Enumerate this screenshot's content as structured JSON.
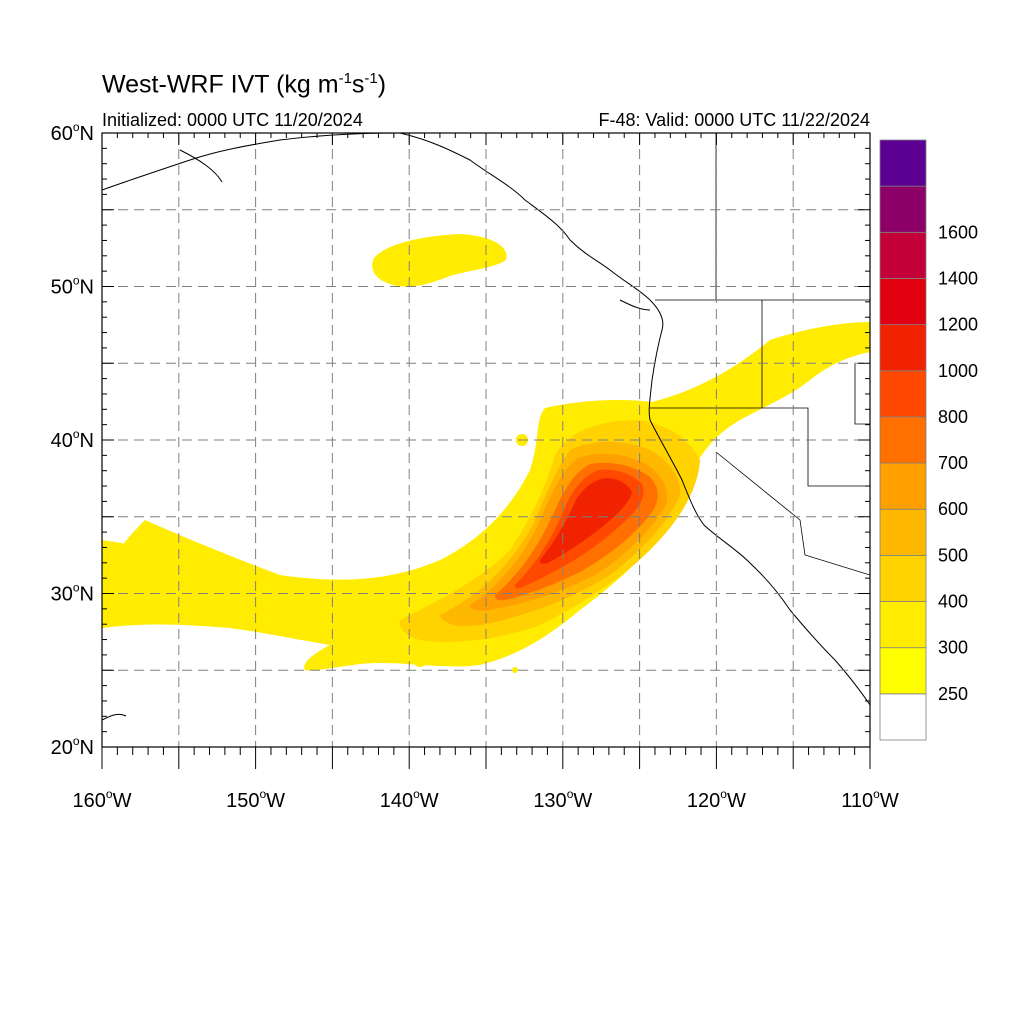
{
  "title": {
    "prefix": "West-WRF IVT (kg m",
    "sup1": "-1",
    "mid": "s",
    "sup2": "-1",
    "suffix": ")"
  },
  "subtitle_left": "Initialized: 0000 UTC 11/20/2024",
  "subtitle_right": "F-48: Valid: 0000 UTC 11/22/2024",
  "map": {
    "lon_range": [
      -160,
      -110
    ],
    "lat_range": [
      20,
      60
    ],
    "lon_ticks": [
      {
        "value": -160,
        "num": "160",
        "unit": "W"
      },
      {
        "value": -150,
        "num": "150",
        "unit": "W"
      },
      {
        "value": -140,
        "num": "140",
        "unit": "W"
      },
      {
        "value": -130,
        "num": "130",
        "unit": "W"
      },
      {
        "value": -120,
        "num": "120",
        "unit": "W"
      },
      {
        "value": -110,
        "num": "110",
        "unit": "W"
      }
    ],
    "lat_ticks": [
      {
        "value": 60,
        "num": "60",
        "unit": "N"
      },
      {
        "value": 50,
        "num": "50",
        "unit": "N"
      },
      {
        "value": 40,
        "num": "40",
        "unit": "N"
      },
      {
        "value": 30,
        "num": "30",
        "unit": "N"
      },
      {
        "value": 20,
        "num": "20",
        "unit": "N"
      }
    ],
    "gridlines": true,
    "gridline_style": "dashed"
  },
  "colorbar": {
    "levels": [
      {
        "label": "",
        "color": "#ffffff"
      },
      {
        "label": "250",
        "color": "#ffff00"
      },
      {
        "label": "300",
        "color": "#ffec00"
      },
      {
        "label": "400",
        "color": "#ffd200"
      },
      {
        "label": "500",
        "color": "#ffb800"
      },
      {
        "label": "600",
        "color": "#ffa000"
      },
      {
        "label": "700",
        "color": "#ff7000"
      },
      {
        "label": "800",
        "color": "#ff4800"
      },
      {
        "label": "1000",
        "color": "#f02200"
      },
      {
        "label": "1200",
        "color": "#e00010"
      },
      {
        "label": "1400",
        "color": "#c40038"
      },
      {
        "label": "1600",
        "color": "#8c0068"
      },
      {
        "label": "",
        "color": "#5c0094"
      }
    ]
  }
}
